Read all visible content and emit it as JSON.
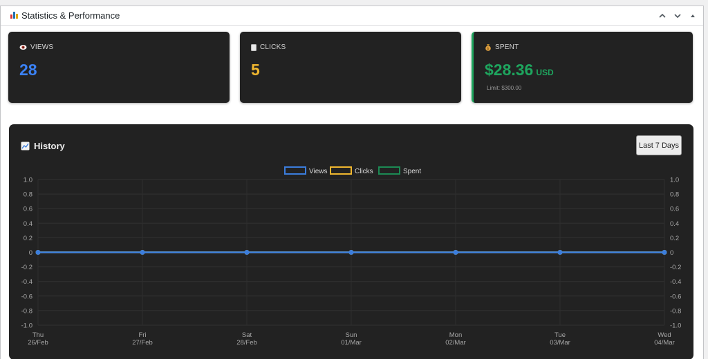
{
  "header": {
    "title": "Statistics & Performance"
  },
  "cards": [
    {
      "label": "VIEWS",
      "value": "28",
      "color": "#3b82f6",
      "icon": "eye-icon"
    },
    {
      "label": "CLICKS",
      "value": "5",
      "color": "#f0b72f",
      "icon": "document-icon"
    },
    {
      "label": "SPENT",
      "value": "$28.36",
      "unit": "USD",
      "sub": "Limit: $300.00",
      "color": "#1ea55e",
      "accent": "#1ea55e",
      "icon": "money-bag-icon"
    }
  ],
  "history": {
    "title": "History",
    "icon": "chart-icon",
    "range_label": "Last 7 Days"
  },
  "chart_data": {
    "type": "line",
    "x": [
      {
        "day": "Thu",
        "date": "26/Feb"
      },
      {
        "day": "Fri",
        "date": "27/Feb"
      },
      {
        "day": "Sat",
        "date": "28/Feb"
      },
      {
        "day": "Sun",
        "date": "01/Mar"
      },
      {
        "day": "Mon",
        "date": "02/Mar"
      },
      {
        "day": "Tue",
        "date": "03/Mar"
      },
      {
        "day": "Wed",
        "date": "04/Mar"
      }
    ],
    "series": [
      {
        "name": "Views",
        "values": [
          0,
          0,
          0,
          0,
          0,
          0,
          0
        ],
        "color": "#3b7ddd"
      },
      {
        "name": "Clicks",
        "values": [
          0,
          0,
          0,
          0,
          0,
          0,
          0
        ],
        "color": "#f0b72f"
      },
      {
        "name": "Spent",
        "values": [
          0,
          0,
          0,
          0,
          0,
          0,
          0
        ],
        "color": "#1c8a54"
      }
    ],
    "yticks": [
      "1.0",
      "0.8",
      "0.6",
      "0.4",
      "0.2",
      "0",
      "-0.2",
      "-0.4",
      "-0.6",
      "-0.8",
      "-1.0"
    ],
    "ylim": [
      -1.0,
      1.0
    ],
    "grid": true,
    "legend": "top-center",
    "dual_y_axis": true
  }
}
